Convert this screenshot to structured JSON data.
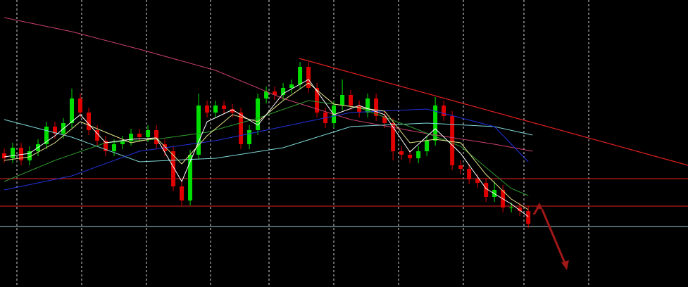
{
  "chart_data": {
    "type": "candlestick",
    "xlim": [
      -0.5,
      80.9
    ],
    "ylim": [
      0,
      408
    ],
    "up_color": "#00e000",
    "down_color": "#e00000",
    "open": [
      190,
      183,
      198,
      180,
      193,
      203,
      228,
      218,
      233,
      268,
      248,
      223,
      208,
      193,
      203,
      208,
      218,
      213,
      223,
      203,
      193,
      143,
      123,
      188,
      258,
      248,
      258,
      253,
      248,
      203,
      223,
      268,
      278,
      273,
      283,
      288,
      313,
      283,
      248,
      233,
      258,
      273,
      258,
      248,
      268,
      243,
      233,
      193,
      188,
      183,
      193,
      208,
      258,
      243,
      173,
      168,
      153,
      148,
      128,
      138,
      113,
      113,
      108
    ],
    "high": [
      197,
      205,
      205,
      200,
      210,
      235,
      235,
      240,
      282,
      275,
      255,
      230,
      215,
      210,
      215,
      225,
      225,
      230,
      230,
      210,
      200,
      150,
      195,
      275,
      265,
      265,
      265,
      260,
      255,
      230,
      275,
      285,
      285,
      290,
      295,
      320,
      320,
      290,
      255,
      265,
      295,
      280,
      265,
      275,
      275,
      250,
      240,
      200,
      195,
      200,
      215,
      270,
      265,
      250,
      180,
      175,
      160,
      155,
      150,
      145,
      120,
      120,
      115
    ],
    "low": [
      176,
      176,
      173,
      173,
      186,
      196,
      211,
      211,
      226,
      241,
      216,
      201,
      186,
      186,
      196,
      201,
      206,
      206,
      196,
      186,
      136,
      116,
      116,
      181,
      241,
      241,
      246,
      241,
      196,
      196,
      216,
      261,
      266,
      266,
      276,
      281,
      276,
      241,
      226,
      226,
      251,
      251,
      241,
      241,
      236,
      226,
      180,
      181,
      176,
      176,
      186,
      201,
      236,
      166,
      161,
      146,
      141,
      121,
      121,
      106,
      106,
      101,
      84
    ],
    "close": [
      183,
      198,
      180,
      193,
      203,
      228,
      218,
      233,
      268,
      248,
      223,
      208,
      193,
      203,
      208,
      218,
      213,
      223,
      203,
      193,
      143,
      123,
      188,
      258,
      248,
      258,
      253,
      248,
      203,
      223,
      268,
      278,
      273,
      283,
      288,
      313,
      283,
      248,
      233,
      258,
      273,
      258,
      248,
      268,
      243,
      233,
      193,
      188,
      183,
      193,
      208,
      258,
      243,
      173,
      168,
      153,
      148,
      128,
      138,
      113,
      113,
      108,
      90
    ],
    "lines": [
      {
        "color": "#c8406e",
        "x": [
          0,
          8,
          16,
          25,
          33,
          41,
          50,
          58,
          62.5
        ],
        "values": [
          383,
          363,
          338,
          308,
          268,
          238,
          218,
          203,
          193
        ]
      },
      {
        "color": "#7fd8d8",
        "x": [
          0,
          8,
          16,
          25,
          33,
          41,
          50,
          58,
          62.5
        ],
        "values": [
          238,
          213,
          178,
          183,
          198,
          228,
          233,
          228,
          216
        ]
      },
      {
        "color": "#2233dd",
        "x": [
          0,
          8,
          16,
          25,
          33,
          41,
          50,
          58,
          62
        ],
        "values": [
          138,
          158,
          193,
          208,
          228,
          248,
          253,
          228,
          178
        ]
      },
      {
        "color": "#2e9b2e",
        "x": [
          0,
          6,
          12,
          18,
          24,
          30,
          36,
          42,
          48,
          54,
          60,
          62
        ],
        "values": [
          150,
          180,
          205,
          210,
          220,
          240,
          265,
          255,
          228,
          200,
          140,
          130
        ]
      },
      {
        "color": "#e6e690",
        "x": [
          0,
          3,
          6,
          9,
          12,
          15,
          18,
          21,
          24,
          27,
          30,
          33,
          36,
          39,
          42,
          45,
          48,
          51,
          54,
          57,
          60,
          62
        ],
        "values": [
          180,
          185,
          205,
          235,
          220,
          205,
          212,
          175,
          215,
          245,
          235,
          265,
          290,
          260,
          255,
          250,
          205,
          210,
          205,
          160,
          125,
          110
        ]
      },
      {
        "color": "#ffffff",
        "x": [
          0,
          3,
          6,
          9,
          12,
          15,
          18,
          21,
          24,
          27,
          30,
          33,
          36,
          39,
          42,
          45,
          48,
          51,
          54,
          57,
          60,
          62
        ],
        "values": [
          185,
          190,
          215,
          245,
          205,
          210,
          212,
          150,
          235,
          252,
          230,
          275,
          295,
          245,
          258,
          245,
          192,
          225,
          190,
          140,
          118,
          100
        ]
      }
    ],
    "hlines": [
      {
        "value": 154,
        "color": "#e02020"
      },
      {
        "value": 115,
        "color": "#e02020"
      },
      {
        "value": 86,
        "color": "#a0c8d8"
      }
    ],
    "trendline": {
      "color": "#e02020",
      "x": [
        34.9,
        80.9
      ],
      "values": [
        325,
        173
      ]
    }
  }
}
